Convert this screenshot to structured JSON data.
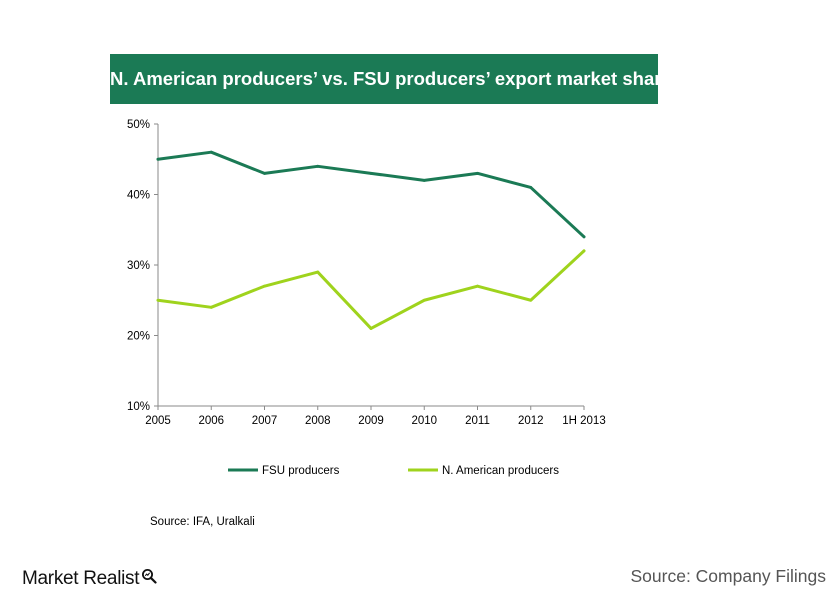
{
  "chart_data": {
    "type": "line",
    "title": "N. American producers’ vs. FSU producers’ export market share",
    "categories": [
      "2005",
      "2006",
      "2007",
      "2008",
      "2009",
      "2010",
      "2011",
      "2012",
      "1H 2013"
    ],
    "series": [
      {
        "name": "FSU producers",
        "color": "#1b7a55",
        "values": [
          45,
          46,
          43,
          44,
          43,
          42,
          43,
          41,
          34
        ]
      },
      {
        "name": "N. American producers",
        "color": "#9fd31d",
        "values": [
          25,
          24,
          27,
          29,
          21,
          25,
          27,
          25,
          32
        ]
      }
    ],
    "ylim": [
      10,
      50
    ],
    "yticks": [
      10,
      20,
      30,
      40,
      50
    ],
    "ytick_labels": [
      "10%",
      "20%",
      "30%",
      "40%",
      "50%"
    ],
    "xlabel": "",
    "ylabel": "",
    "grid": false,
    "legend_position": "bottom",
    "source_note": "Source: IFA, Uralkali"
  },
  "footer": {
    "brand": "Market Realist",
    "source": "Source: Company Filings"
  }
}
